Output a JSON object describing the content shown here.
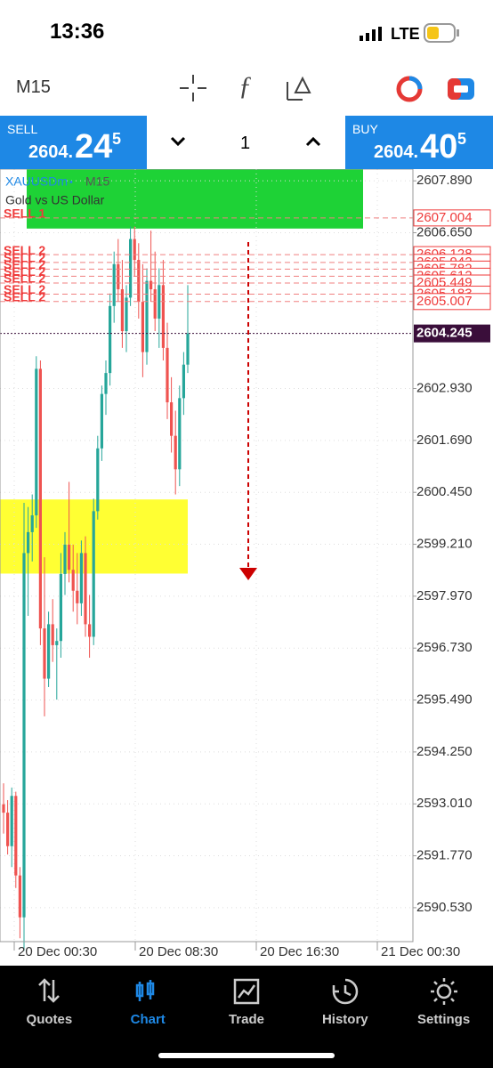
{
  "status": {
    "time": "13:36",
    "network": "LTE"
  },
  "toolbar": {
    "timeframe": "M15"
  },
  "trade": {
    "sell": {
      "label": "SELL",
      "main": "2604.",
      "big": "24",
      "sup": "5"
    },
    "lot": "1",
    "buy": {
      "label": "BUY",
      "main": "2604.",
      "big": "40",
      "sup": "5"
    }
  },
  "chart": {
    "symbol": "XAUUSDm",
    "timeframe": "M15",
    "description": "Gold vs US Dollar",
    "ylim": [
      2589.72,
      2608.17
    ],
    "yticks": [
      {
        "value": 2607.89,
        "label": "2607.890"
      },
      {
        "value": 2606.65,
        "label": "2606.650"
      },
      {
        "value": 2602.93,
        "label": "2602.930"
      },
      {
        "value": 2601.69,
        "label": "2601.690"
      },
      {
        "value": 2600.45,
        "label": "2600.450"
      },
      {
        "value": 2599.21,
        "label": "2599.210"
      },
      {
        "value": 2597.97,
        "label": "2597.970"
      },
      {
        "value": 2596.73,
        "label": "2596.730"
      },
      {
        "value": 2595.49,
        "label": "2595.490"
      },
      {
        "value": 2594.25,
        "label": "2594.250"
      },
      {
        "value": 2593.01,
        "label": "2593.010"
      },
      {
        "value": 2591.77,
        "label": "2591.770"
      },
      {
        "value": 2590.53,
        "label": "2590.530"
      }
    ],
    "xlabels": [
      "20 Dec 00:30",
      "20 Dec 08:30",
      "20 Dec 16:30",
      "21 Dec 00:30"
    ],
    "up_color": "#26a69a",
    "down_color": "#ef5350",
    "zones": [
      {
        "top": 2608.17,
        "bottom": 2606.75,
        "color": "#1ed236"
      },
      {
        "top": 2600.28,
        "bottom": 2598.51,
        "color": "#ffff33"
      }
    ],
    "orders": [
      {
        "label": "SELL 1",
        "price": 2607.004
      },
      {
        "label": "SELL 2",
        "price": 2606.128
      },
      {
        "label": "SELL 2",
        "price": 2605.942
      },
      {
        "label": "SELL 2",
        "price": 2605.782
      },
      {
        "label": "SELL 2",
        "price": 2605.612
      },
      {
        "label": "SELL 2",
        "price": 2605.449
      },
      {
        "label": "SELL 2",
        "price": 2605.183
      },
      {
        "label": "SELL 2",
        "price": 2605.007
      }
    ],
    "current_price": 2604.245,
    "candles": [
      [
        2593.0,
        2593.5,
        2592.3,
        2592.8
      ],
      [
        2592.8,
        2593.1,
        2591.8,
        2592.0
      ],
      [
        2592.0,
        2593.4,
        2591.5,
        2593.2
      ],
      [
        2593.2,
        2593.3,
        2591.0,
        2591.3
      ],
      [
        2591.3,
        2591.5,
        2589.8,
        2590.3
      ],
      [
        2590.3,
        2600.2,
        2589.5,
        2599.0
      ],
      [
        2599.0,
        2600.1,
        2597.5,
        2599.5
      ],
      [
        2599.5,
        2600.4,
        2598.8,
        2599.9
      ],
      [
        2599.9,
        2603.7,
        2599.6,
        2603.4
      ],
      [
        2603.4,
        2603.6,
        2596.8,
        2597.2
      ],
      [
        2597.2,
        2598.9,
        2595.1,
        2596.0
      ],
      [
        2596.0,
        2597.6,
        2595.8,
        2597.3
      ],
      [
        2597.3,
        2597.9,
        2596.4,
        2596.8
      ],
      [
        2596.8,
        2597.2,
        2595.5,
        2596.9
      ],
      [
        2596.9,
        2599.0,
        2596.5,
        2598.5
      ],
      [
        2598.5,
        2599.5,
        2598.0,
        2599.2
      ],
      [
        2599.2,
        2600.7,
        2598.3,
        2598.6
      ],
      [
        2598.6,
        2599.2,
        2597.6,
        2598.1
      ],
      [
        2598.1,
        2599.0,
        2597.3,
        2597.8
      ],
      [
        2597.8,
        2599.3,
        2597.5,
        2599.0
      ],
      [
        2599.0,
        2599.4,
        2597.0,
        2597.3
      ],
      [
        2597.3,
        2598.0,
        2596.5,
        2597.0
      ],
      [
        2597.0,
        2600.3,
        2596.8,
        2600.0
      ],
      [
        2600.0,
        2601.8,
        2599.8,
        2601.5
      ],
      [
        2601.5,
        2603.0,
        2601.2,
        2602.8
      ],
      [
        2602.8,
        2603.6,
        2602.3,
        2603.3
      ],
      [
        2603.3,
        2605.2,
        2603.0,
        2604.9
      ],
      [
        2604.9,
        2606.2,
        2604.5,
        2605.9
      ],
      [
        2605.9,
        2606.5,
        2605.0,
        2605.3
      ],
      [
        2605.3,
        2606.0,
        2603.9,
        2604.3
      ],
      [
        2604.3,
        2605.4,
        2603.8,
        2605.1
      ],
      [
        2605.1,
        2606.8,
        2604.9,
        2606.5
      ],
      [
        2606.5,
        2606.8,
        2605.6,
        2606.0
      ],
      [
        2606.0,
        2606.4,
        2604.6,
        2605.0
      ],
      [
        2605.0,
        2605.9,
        2603.2,
        2603.8
      ],
      [
        2603.8,
        2605.8,
        2603.5,
        2605.5
      ],
      [
        2605.5,
        2606.7,
        2605.0,
        2605.3
      ],
      [
        2605.3,
        2606.2,
        2604.3,
        2604.6
      ],
      [
        2604.6,
        2605.8,
        2603.9,
        2605.4
      ],
      [
        2605.4,
        2606.0,
        2603.6,
        2603.9
      ],
      [
        2603.9,
        2604.5,
        2602.2,
        2602.6
      ],
      [
        2602.6,
        2603.2,
        2601.4,
        2601.8
      ],
      [
        2601.8,
        2602.4,
        2600.4,
        2601.0
      ],
      [
        2601.0,
        2603.0,
        2600.6,
        2602.7
      ],
      [
        2602.7,
        2603.8,
        2602.3,
        2603.5
      ],
      [
        2603.5,
        2605.4,
        2603.3,
        2604.245
      ]
    ]
  },
  "nav": [
    "Quotes",
    "Chart",
    "Trade",
    "History",
    "Settings"
  ]
}
